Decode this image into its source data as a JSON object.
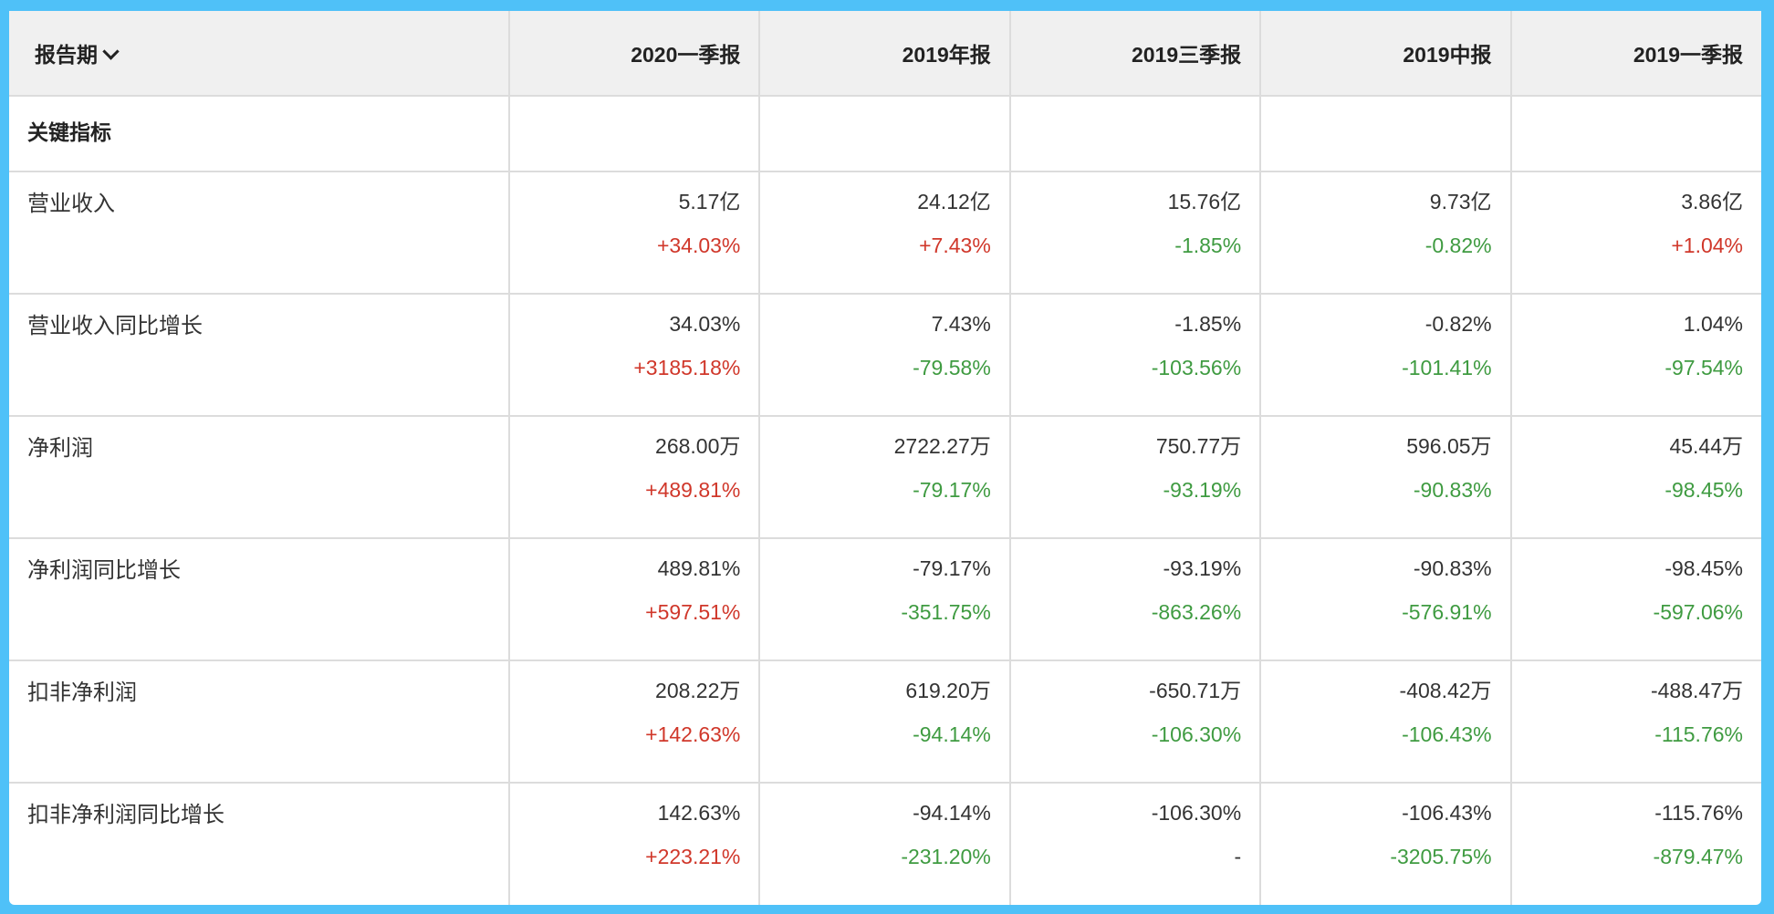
{
  "header": {
    "period_label": "报告期",
    "columns": [
      "2020一季报",
      "2019年报",
      "2019三季报",
      "2019中报",
      "2019一季报"
    ]
  },
  "section_label": "关键指标",
  "colors": {
    "border": "#4FC1F8",
    "up": "#d0372a",
    "down": "#3f9b41"
  },
  "rows": [
    {
      "label": "营业收入",
      "cells": [
        {
          "v": "5.17亿",
          "c": "+34.03%",
          "d": "up"
        },
        {
          "v": "24.12亿",
          "c": "+7.43%",
          "d": "up"
        },
        {
          "v": "15.76亿",
          "c": "-1.85%",
          "d": "down"
        },
        {
          "v": "9.73亿",
          "c": "-0.82%",
          "d": "down"
        },
        {
          "v": "3.86亿",
          "c": "+1.04%",
          "d": "up"
        }
      ]
    },
    {
      "label": "营业收入同比增长",
      "cells": [
        {
          "v": "34.03%",
          "c": "+3185.18%",
          "d": "up"
        },
        {
          "v": "7.43%",
          "c": "-79.58%",
          "d": "down"
        },
        {
          "v": "-1.85%",
          "c": "-103.56%",
          "d": "down"
        },
        {
          "v": "-0.82%",
          "c": "-101.41%",
          "d": "down"
        },
        {
          "v": "1.04%",
          "c": "-97.54%",
          "d": "down"
        }
      ]
    },
    {
      "label": "净利润",
      "cells": [
        {
          "v": "268.00万",
          "c": "+489.81%",
          "d": "up"
        },
        {
          "v": "2722.27万",
          "c": "-79.17%",
          "d": "down"
        },
        {
          "v": "750.77万",
          "c": "-93.19%",
          "d": "down"
        },
        {
          "v": "596.05万",
          "c": "-90.83%",
          "d": "down"
        },
        {
          "v": "45.44万",
          "c": "-98.45%",
          "d": "down"
        }
      ]
    },
    {
      "label": "净利润同比增长",
      "cells": [
        {
          "v": "489.81%",
          "c": "+597.51%",
          "d": "up"
        },
        {
          "v": "-79.17%",
          "c": "-351.75%",
          "d": "down"
        },
        {
          "v": "-93.19%",
          "c": "-863.26%",
          "d": "down"
        },
        {
          "v": "-90.83%",
          "c": "-576.91%",
          "d": "down"
        },
        {
          "v": "-98.45%",
          "c": "-597.06%",
          "d": "down"
        }
      ]
    },
    {
      "label": "扣非净利润",
      "cells": [
        {
          "v": "208.22万",
          "c": "+142.63%",
          "d": "up"
        },
        {
          "v": "619.20万",
          "c": "-94.14%",
          "d": "down"
        },
        {
          "v": "-650.71万",
          "c": "-106.30%",
          "d": "down"
        },
        {
          "v": "-408.42万",
          "c": "-106.43%",
          "d": "down"
        },
        {
          "v": "-488.47万",
          "c": "-115.76%",
          "d": "down"
        }
      ]
    },
    {
      "label": "扣非净利润同比增长",
      "cells": [
        {
          "v": "142.63%",
          "c": "+223.21%",
          "d": "up"
        },
        {
          "v": "-94.14%",
          "c": "-231.20%",
          "d": "down"
        },
        {
          "v": "-106.30%",
          "c": "-",
          "d": "flat"
        },
        {
          "v": "-106.43%",
          "c": "-3205.75%",
          "d": "down"
        },
        {
          "v": "-115.76%",
          "c": "-879.47%",
          "d": "down"
        }
      ]
    }
  ]
}
